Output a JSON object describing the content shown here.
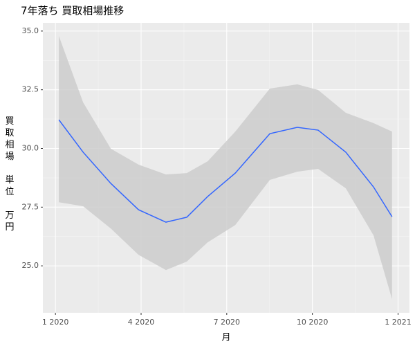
{
  "chart_data": {
    "type": "line",
    "title": "7年落ち 買取相場推移",
    "xlabel": "月",
    "ylabel": "買取相場 単位 万円",
    "x": [
      0.12,
      0.97,
      1.94,
      2.91,
      3.87,
      4.6,
      5.33,
      6.3,
      7.51,
      8.47,
      9.2,
      10.17,
      11.14,
      11.79
    ],
    "values": [
      31.22,
      29.84,
      28.51,
      27.39,
      26.86,
      27.07,
      27.95,
      28.95,
      30.63,
      30.9,
      30.78,
      29.84,
      28.36,
      27.09
    ],
    "upper": [
      34.79,
      31.96,
      29.99,
      29.31,
      28.89,
      28.95,
      29.45,
      30.72,
      32.55,
      32.73,
      32.49,
      31.52,
      31.08,
      30.72
    ],
    "lower": [
      27.71,
      27.54,
      26.59,
      25.47,
      24.82,
      25.18,
      26.0,
      26.74,
      28.66,
      29.01,
      29.13,
      28.3,
      26.3,
      23.58
    ],
    "color": "#3366ff",
    "band_color": "#cccccc",
    "xlim": [
      -0.44,
      12.4
    ],
    "ylim": [
      23.0,
      35.35
    ],
    "xticks": [
      {
        "value": 0,
        "label": "1 2020"
      },
      {
        "value": 3,
        "label": "4 2020"
      },
      {
        "value": 6,
        "label": "7 2020"
      },
      {
        "value": 9,
        "label": "10 2020"
      },
      {
        "value": 12,
        "label": "1 2021"
      }
    ],
    "yticks": [
      {
        "value": 25,
        "label": "25.0"
      },
      {
        "value": 27.5,
        "label": "27.5"
      },
      {
        "value": 30,
        "label": "30.0"
      },
      {
        "value": 32.5,
        "label": "32.5"
      },
      {
        "value": 35,
        "label": "35.0"
      }
    ],
    "grid": true
  }
}
